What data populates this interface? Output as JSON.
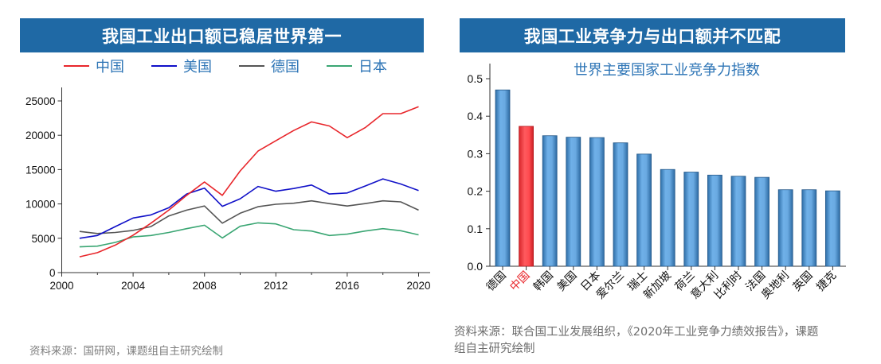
{
  "left_panel": {
    "banner_title": "我国工业出口额已稳居世界第一",
    "source": "资料来源：国研网，课题组自主研究绘制"
  },
  "right_panel": {
    "banner_title": "我国工业竞争力与出口额并不匹配",
    "source": "资料来源：联合国工业发展组织，《2020年工业竞争力绩效报告》，课题组自主研究绘制"
  },
  "chart_data": [
    {
      "type": "line",
      "title": "我国工业出口额已稳居世界第一",
      "xlabel": "",
      "ylabel": "",
      "xlim": [
        2000,
        2020
      ],
      "ylim": [
        0,
        25000
      ],
      "xticks": [
        2000,
        2004,
        2008,
        2012,
        2016,
        2020
      ],
      "xminor_ticks": [
        2002,
        2006,
        2010,
        2014,
        2018
      ],
      "yticks": [
        0,
        5000,
        10000,
        15000,
        20000,
        25000
      ],
      "grid": false,
      "legend_position": "top",
      "x": [
        2001,
        2002,
        2003,
        2004,
        2005,
        2006,
        2007,
        2008,
        2009,
        2010,
        2011,
        2012,
        2013,
        2014,
        2015,
        2016,
        2017,
        2018,
        2019,
        2020
      ],
      "series": [
        {
          "name": "中国",
          "color": "#e8262b",
          "values": [
            2300,
            2900,
            4000,
            5450,
            7200,
            9100,
            11250,
            13200,
            11250,
            14800,
            17700,
            19200,
            20700,
            21950,
            21350,
            19650,
            21100,
            23150,
            23150,
            24150
          ]
        },
        {
          "name": "美国",
          "color": "#1010c8",
          "values": [
            5000,
            5400,
            6700,
            7950,
            8400,
            9450,
            11450,
            12300,
            9650,
            10750,
            12550,
            11850,
            12250,
            12750,
            11450,
            11600,
            12600,
            13650,
            12900,
            11950
          ]
        },
        {
          "name": "德国",
          "color": "#555555",
          "values": [
            6000,
            5700,
            5850,
            6150,
            6700,
            8250,
            9100,
            9700,
            7200,
            8650,
            9600,
            9950,
            10100,
            10450,
            10050,
            9700,
            10050,
            10450,
            10300,
            9100
          ]
        },
        {
          "name": "日本",
          "color": "#3aa673",
          "values": [
            3750,
            3850,
            4400,
            5200,
            5400,
            5850,
            6400,
            6900,
            5050,
            6750,
            7250,
            7100,
            6250,
            6050,
            5400,
            5600,
            6050,
            6400,
            6100,
            5500
          ]
        }
      ]
    },
    {
      "type": "bar",
      "title": "世界主要国家工业竞争力指数",
      "xlabel": "",
      "ylabel": "",
      "ylim": [
        0,
        0.5
      ],
      "yticks": [
        "0.0",
        "0.1",
        "0.2",
        "0.3",
        "0.4",
        "0.5"
      ],
      "grid": false,
      "categories": [
        "德国",
        "中国",
        "韩国",
        "美国",
        "日本",
        "爱尔兰",
        "瑞士",
        "新加坡",
        "荷兰",
        "意大利",
        "比利时",
        "法国",
        "奥地利",
        "英国",
        "捷克"
      ],
      "values": [
        0.47,
        0.373,
        0.348,
        0.344,
        0.343,
        0.329,
        0.299,
        0.258,
        0.251,
        0.243,
        0.24,
        0.237,
        0.204,
        0.204,
        0.201
      ],
      "highlight": "中国",
      "colors": {
        "default": "#5b9bd5",
        "highlight": "#f0393d",
        "highlight_label": "#e8262b"
      }
    }
  ]
}
